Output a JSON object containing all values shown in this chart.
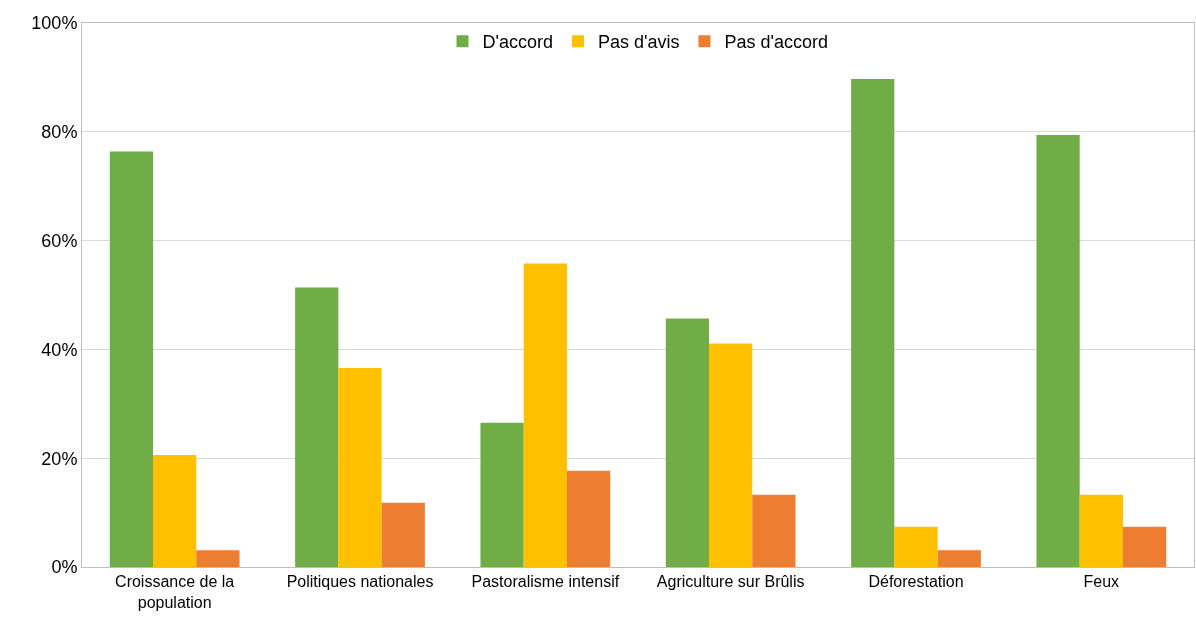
{
  "chart_data": {
    "type": "bar",
    "categories": [
      "Croissance de la population",
      "Politiques nationales",
      "Pastoralisme intensif",
      "Agriculture sur Brûlis",
      "Déforestation",
      "Feux"
    ],
    "series": [
      {
        "name": "D'accord",
        "color": "#70ad47",
        "values": [
          76.4,
          51.4,
          26.5,
          45.7,
          89.7,
          79.4
        ]
      },
      {
        "name": "Pas d'avis",
        "color": "#ffc000",
        "values": [
          20.6,
          36.6,
          55.8,
          41.1,
          7.4,
          13.3
        ]
      },
      {
        "name": "Pas d'accord",
        "color": "#ed7d31",
        "values": [
          3.1,
          11.8,
          17.7,
          13.3,
          3.1,
          7.4
        ]
      }
    ],
    "ylim": [
      0,
      100
    ],
    "yticks": [
      {
        "value": 0,
        "label": "0%"
      },
      {
        "value": 20,
        "label": "20%"
      },
      {
        "value": 40,
        "label": "40%"
      },
      {
        "value": 60,
        "label": "60%"
      },
      {
        "value": 80,
        "label": "80%"
      },
      {
        "value": 100,
        "label": "100%"
      }
    ],
    "grid": "y",
    "legend": "top"
  }
}
